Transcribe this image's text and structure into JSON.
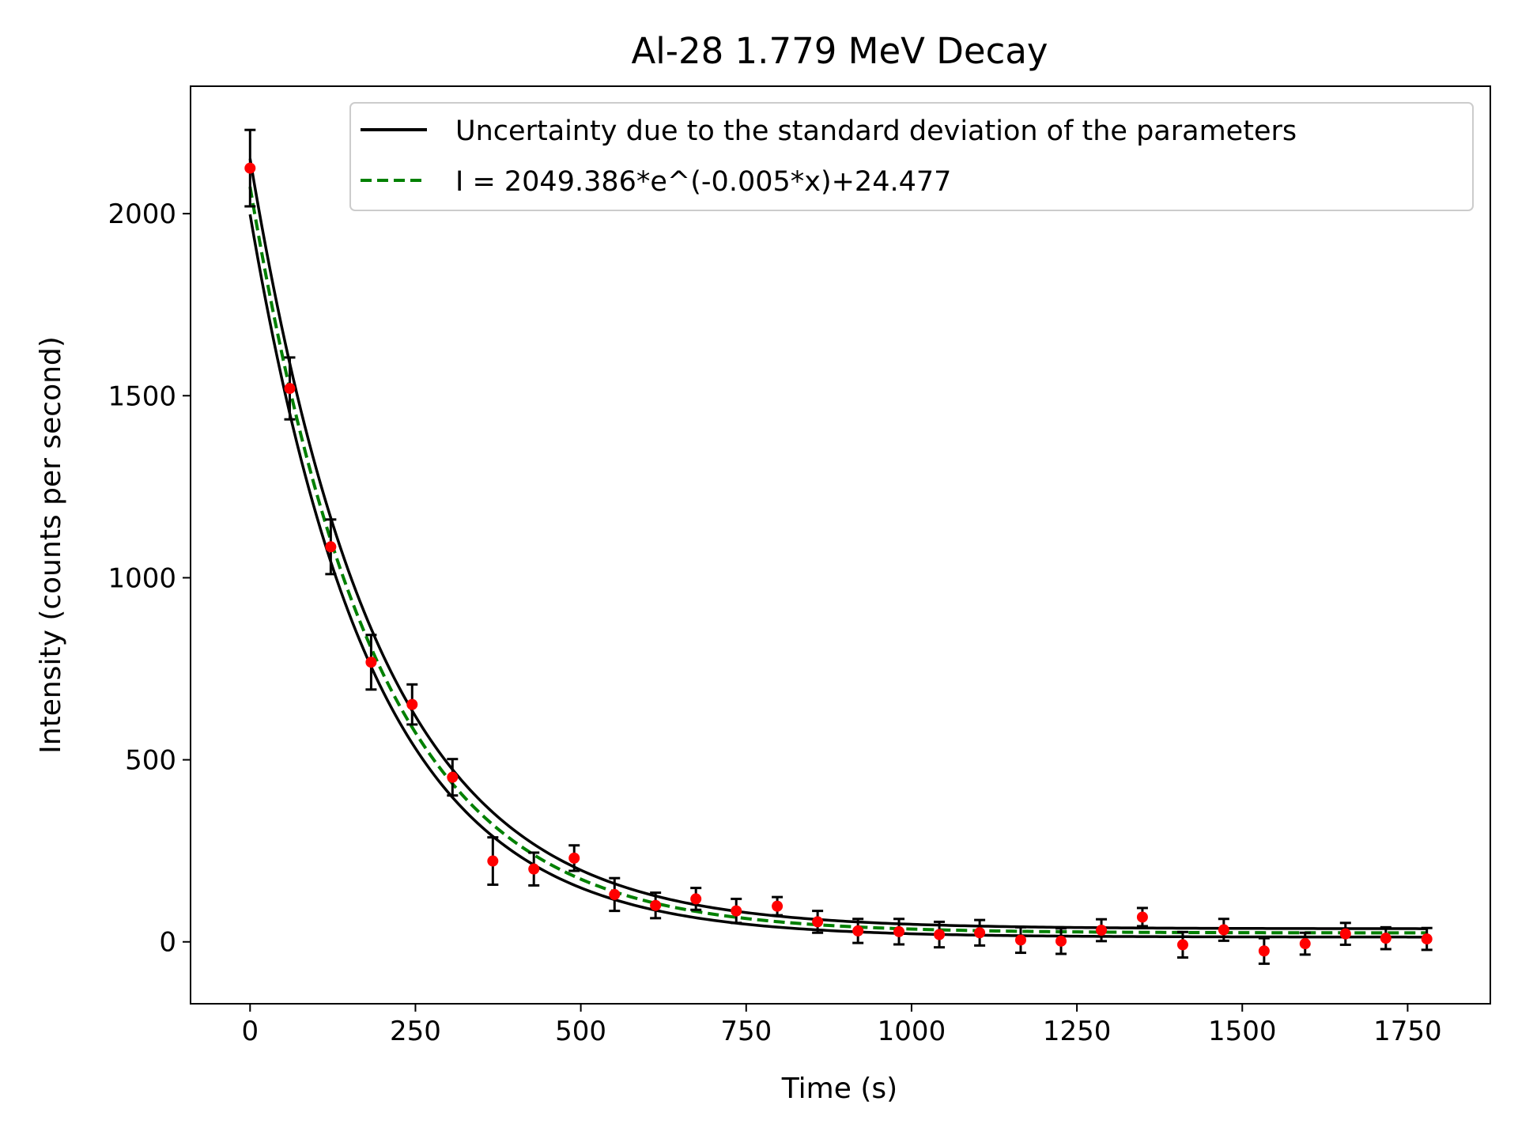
{
  "chart_data": {
    "type": "scatter",
    "title": "Al-28 1.779 MeV Decay",
    "xlabel": "Time (s)",
    "ylabel": "Intensity (counts per second)",
    "xlim": [
      -90,
      1875
    ],
    "ylim": [
      -170,
      2350
    ],
    "xticks": [
      0,
      250,
      500,
      750,
      1000,
      1250,
      1500,
      1750
    ],
    "yticks": [
      0,
      500,
      1000,
      1500,
      2000
    ],
    "grid": false,
    "legend_position": "top-right",
    "colors": {
      "points": "#ff0000",
      "errorbars": "#000000",
      "uncertainty": "#000000",
      "fit": "#008000"
    },
    "legend": [
      {
        "label": "Uncertainty due to the standard deviation of the parameters",
        "style": "solid",
        "color": "#000000"
      },
      {
        "label": "I = 2049.386*e^(-0.005*x)+24.477",
        "style": "dashed",
        "color": "#008000"
      }
    ],
    "fit": {
      "A": 2049.386,
      "k": 0.00526,
      "C": 24.477,
      "x_range": [
        0,
        1780
      ]
    },
    "uncertainty_band": [
      {
        "A": 2115,
        "k": 0.00515,
        "C": 36
      },
      {
        "A": 1985,
        "k": 0.00537,
        "C": 13
      }
    ],
    "points": [
      {
        "x": 0,
        "y": 2125,
        "err": 105
      },
      {
        "x": 60,
        "y": 1520,
        "err": 85
      },
      {
        "x": 122,
        "y": 1085,
        "err": 75
      },
      {
        "x": 183,
        "y": 768,
        "err": 75
      },
      {
        "x": 245,
        "y": 652,
        "err": 55
      },
      {
        "x": 306,
        "y": 452,
        "err": 50
      },
      {
        "x": 367,
        "y": 222,
        "err": 65
      },
      {
        "x": 429,
        "y": 200,
        "err": 45
      },
      {
        "x": 490,
        "y": 230,
        "err": 35
      },
      {
        "x": 551,
        "y": 130,
        "err": 45
      },
      {
        "x": 613,
        "y": 100,
        "err": 35
      },
      {
        "x": 674,
        "y": 118,
        "err": 30
      },
      {
        "x": 735,
        "y": 85,
        "err": 33
      },
      {
        "x": 797,
        "y": 98,
        "err": 25
      },
      {
        "x": 858,
        "y": 55,
        "err": 30
      },
      {
        "x": 919,
        "y": 30,
        "err": 33
      },
      {
        "x": 981,
        "y": 28,
        "err": 35
      },
      {
        "x": 1042,
        "y": 20,
        "err": 35
      },
      {
        "x": 1103,
        "y": 25,
        "err": 35
      },
      {
        "x": 1165,
        "y": 5,
        "err": 35
      },
      {
        "x": 1226,
        "y": 2,
        "err": 35
      },
      {
        "x": 1287,
        "y": 32,
        "err": 30
      },
      {
        "x": 1349,
        "y": 68,
        "err": 25
      },
      {
        "x": 1410,
        "y": -8,
        "err": 35
      },
      {
        "x": 1472,
        "y": 33,
        "err": 30
      },
      {
        "x": 1533,
        "y": -25,
        "err": 35
      },
      {
        "x": 1595,
        "y": -5,
        "err": 30
      },
      {
        "x": 1656,
        "y": 22,
        "err": 30
      },
      {
        "x": 1717,
        "y": 10,
        "err": 30
      },
      {
        "x": 1779,
        "y": 8,
        "err": 30
      }
    ]
  }
}
